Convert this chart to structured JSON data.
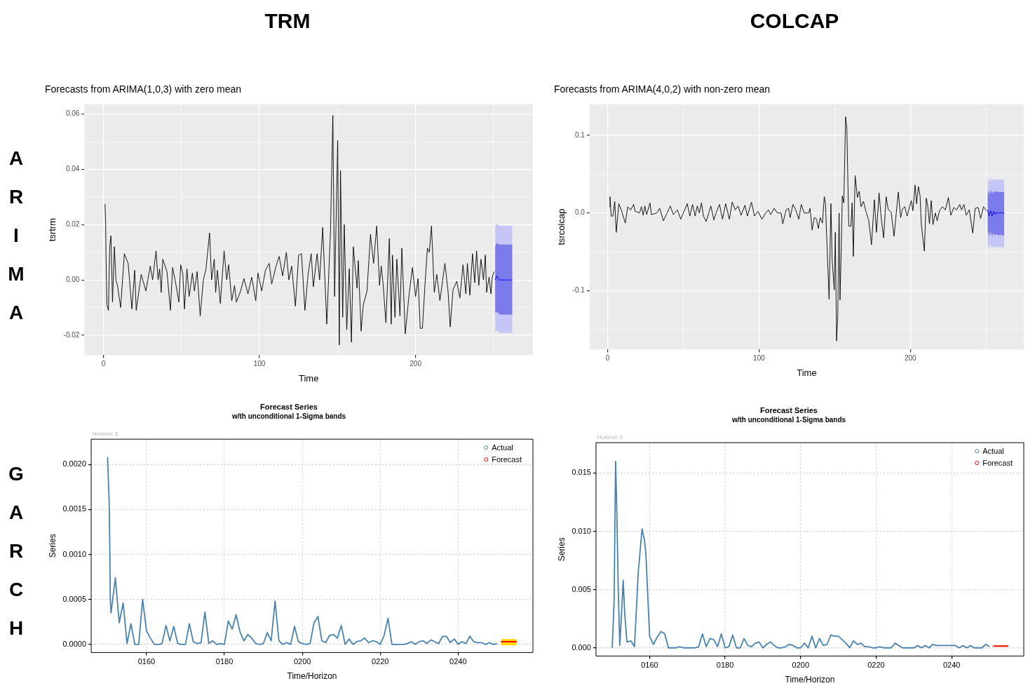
{
  "chart_data": [
    {
      "type": "line",
      "title": "Forecasts from ARIMA(1,0,3) with zero mean",
      "xlabel": "Time",
      "ylabel": "tsrtrm",
      "grid": true,
      "legend": false,
      "xlim": [
        -12.2,
        275.2
      ],
      "ylim": [
        -0.0272,
        0.0635
      ],
      "xticks": [
        0,
        {
          "value": 50,
          "label": null
        },
        100,
        {
          "value": 150,
          "label": null
        },
        200,
        {
          "value": 250,
          "label": null
        }
      ],
      "yticks": [
        {
          "value": -0.02,
          "label": "-0.02"
        },
        {
          "value": -0.01,
          "label": null
        },
        {
          "value": 0,
          "label": "0.00"
        },
        {
          "value": 0.01,
          "label": null
        },
        {
          "value": 0.02,
          "label": "0.02"
        },
        {
          "value": 0.03,
          "label": null
        },
        {
          "value": 0.04,
          "label": "0.04"
        },
        {
          "value": 0.05,
          "label": null
        },
        {
          "value": 0.06,
          "label": "0.06"
        }
      ],
      "series": [
        {
          "color": "#000000",
          "x": [
            1,
            1.4,
            1.6,
            2.2,
            3.2,
            4,
            4.8,
            5.8,
            7,
            8,
            9,
            11,
            13.4,
            15.8,
            18.2,
            20,
            21,
            24.2,
            27.2,
            30,
            31.5,
            33.7,
            35,
            36,
            37,
            38,
            40.7,
            42.9,
            44.3,
            46.7,
            48.3,
            49.5,
            50.9,
            51.9,
            53.5,
            54.9,
            57,
            58.3,
            60,
            62,
            64,
            65.7,
            68,
            69.3,
            71,
            71.9,
            73,
            74.9,
            77.3,
            79,
            80.2,
            82.2,
            84,
            85.2,
            87.6,
            90,
            92.6,
            95,
            97.6,
            99,
            101.4,
            103.8,
            106.2,
            107.8,
            110.6,
            112.6,
            114.8,
            117.2,
            118.8,
            120.6,
            123,
            125.1,
            126.9,
            129.1,
            131.1,
            133.1,
            134.5,
            136.9,
            138.5,
            140.5,
            143.1,
            145.5,
            147,
            148.1,
            150.1,
            151.1,
            151.9,
            153.3,
            154.3,
            155.9,
            157.5,
            158.9,
            160.1,
            162.5,
            163.3,
            165.1,
            166.5,
            168.9,
            171.1,
            173.1,
            175.1,
            176.9,
            178,
            179.2,
            181,
            183.2,
            184.4,
            185.2,
            186.8,
            188,
            190,
            191.2,
            193.4,
            195.8,
            198,
            200,
            201.6,
            203,
            204.4,
            206,
            207.6,
            208.8,
            210.2,
            212,
            213.6,
            215.6,
            218.8,
            220.8,
            222.2,
            224,
            226.4,
            228.4,
            230.4,
            232.2,
            233.2,
            234.8,
            236.5,
            237.9,
            239.1,
            240.5,
            241.9,
            243.5,
            244.7,
            245.5,
            247.1,
            248.3,
            249.1,
            250.3
          ],
          "values": [
            0.0275,
            0.021,
            0.01,
            -0.009,
            -0.011,
            0.012,
            0.016,
            -0.008,
            0.012,
            0,
            -0.002,
            -0.01,
            0.0095,
            0.006,
            -0.0105,
            0.0035,
            -0.011,
            0.002,
            -0.004,
            0.005,
            0,
            0.0105,
            0,
            0.004,
            -0.0045,
            0.0075,
            0.003,
            -0.011,
            0.0045,
            -0.0025,
            -0.008,
            0.0055,
            0.002,
            -0.0105,
            0.004,
            -0.006,
            0.0025,
            -0.004,
            0.003,
            -0.013,
            0,
            0.004,
            0.017,
            0,
            0.0075,
            -0.0045,
            0.0035,
            -0.0085,
            0.0105,
            0,
            0.0055,
            -0.0075,
            -0.002,
            -0.008,
            -0.0045,
            0.0005,
            -0.005,
            0.001,
            -0.0075,
            0.0025,
            -0.004,
            0.0035,
            0.006,
            -0.0015,
            0.005,
            0.0085,
            0.0015,
            0.01,
            0,
            0.005,
            -0.0095,
            0.009,
            0.0095,
            -0.011,
            0.002,
            0.0095,
            -0.0025,
            0.0095,
            0,
            0.019,
            -0.016,
            0.018,
            0.0595,
            -0.006,
            0.0505,
            -0.0235,
            0.0395,
            -0.0135,
            0.02,
            -0.018,
            0.004,
            -0.0225,
            0.012,
            -0.003,
            0.007,
            -0.0185,
            -0.009,
            -0.004,
            0.0165,
            0.006,
            0.0195,
            -0.002,
            0.005,
            -0.0015,
            -0.0155,
            0.015,
            -0.016,
            0.009,
            -0.0135,
            0.0075,
            -0.013,
            0.0115,
            -0.0195,
            -0.0055,
            0.0045,
            -0.006,
            0.0005,
            -0.0175,
            -0.0175,
            -0.002,
            0.0115,
            0.01,
            0.0195,
            -0.0045,
            0.002,
            -0.0075,
            0.006,
            -0.004,
            -0.017,
            -0.0035,
            -0.0005,
            -0.0065,
            0.0055,
            -0.005,
            0.006,
            -0.0055,
            0.0095,
            -0.001,
            0.0105,
            -0.002,
            0.0075,
            0,
            0.009,
            -0.0045,
            0.001,
            -0.005,
            0.001,
            0.003
          ]
        },
        {
          "color": "#c5c5f7",
          "x": [
            251,
            252,
            253,
            254,
            255,
            256,
            257,
            258,
            259,
            260,
            261,
            262
          ],
          "values": [
            null,
            null,
            null,
            null,
            null,
            null,
            null,
            null,
            null,
            null,
            null,
            null
          ],
          "lower": [
            -0.019,
            -0.018,
            -0.0188,
            -0.019,
            -0.0192,
            -0.0192,
            -0.0192,
            -0.0192,
            -0.0192,
            -0.0192,
            -0.0192,
            -0.0192
          ],
          "upper": [
            0.019,
            0.0205,
            0.0198,
            0.0196,
            0.0196,
            0.0196,
            0.0196,
            0.0196,
            0.0196,
            0.0196,
            0.0196,
            0.0196
          ]
        },
        {
          "color": "#7b7bec",
          "x": [
            251,
            252,
            253,
            254,
            255,
            256,
            257,
            258,
            259,
            260,
            261,
            262
          ],
          "values": [
            null,
            null,
            null,
            null,
            null,
            null,
            null,
            null,
            null,
            null,
            null,
            null
          ],
          "lower": [
            -0.012,
            -0.0115,
            -0.012,
            -0.0125,
            -0.0125,
            -0.0125,
            -0.0125,
            -0.0125,
            -0.0125,
            -0.0125,
            -0.0125,
            -0.0125
          ],
          "upper": [
            0.012,
            0.0135,
            0.013,
            0.0128,
            0.0128,
            0.0128,
            0.0128,
            0.0128,
            0.0128,
            0.0128,
            0.0128,
            0.0128
          ]
        },
        {
          "color": "#0000ff",
          "x": [
            251,
            252,
            253,
            254,
            255,
            256,
            257,
            258,
            259,
            260,
            261,
            262
          ],
          "values": [
            0,
            0.0015,
            0.0003,
            0,
            0,
            0,
            0,
            0,
            0,
            0,
            0,
            0
          ]
        }
      ]
    },
    {
      "type": "line",
      "title": "Forecasts from ARIMA(4,0,2) with non-zero mean",
      "xlabel": "Time",
      "ylabel": "tsrcolcap",
      "grid": true,
      "legend": false,
      "xlim": [
        -11.9,
        274.9
      ],
      "ylim": [
        -0.176,
        0.14
      ],
      "xticks": [
        0,
        {
          "value": 50,
          "label": null
        },
        100,
        {
          "value": 150,
          "label": null
        },
        200,
        {
          "value": 250,
          "label": null
        }
      ],
      "yticks": [
        {
          "value": -0.15,
          "label": null
        },
        {
          "value": -0.1,
          "label": "-0.1"
        },
        {
          "value": -0.05,
          "label": null
        },
        {
          "value": 0,
          "label": "0.0"
        },
        {
          "value": 0.05,
          "label": null
        },
        {
          "value": 0.1,
          "label": "0.1"
        }
      ],
      "series": [
        {
          "color": "#000000",
          "x": [
            1.2,
            1.6,
            2.3,
            3.5,
            4.7,
            5.7,
            7.4,
            9,
            11.7,
            13.3,
            15.2,
            17.2,
            18.2,
            21.1,
            22.3,
            23.5,
            24.6,
            25.8,
            28,
            28.9,
            32.5,
            34.4,
            36.8,
            39.3,
            41.4,
            43.4,
            46.1,
            48.3,
            52.6,
            54.3,
            56.1,
            57.8,
            59.2,
            60.6,
            62,
            63.3,
            65.1,
            67.1,
            68.2,
            70.2,
            71.6,
            73.9,
            75.9,
            78,
            80.4,
            82.3,
            84.3,
            86.2,
            88.2,
            90.7,
            92.3,
            95,
            97,
            99.3,
            102,
            104.4,
            106.2,
            107.7,
            110.1,
            112.1,
            114.6,
            115.7,
            117.9,
            119.5,
            120.6,
            122.4,
            124.3,
            126.3,
            127.9,
            129.8,
            132.8,
            133.7,
            135.1,
            136.5,
            138,
            139.2,
            140.4,
            141.9,
            143.1,
            143.9,
            144.7,
            146.3,
            147.5,
            148.3,
            149.7,
            150.4,
            151.2,
            152,
            152.9,
            153.5,
            154.3,
            155,
            156,
            157.2,
            158,
            159.3,
            160.7,
            161.5,
            162.3,
            163.5,
            165,
            166.2,
            167.4,
            169,
            170.5,
            172.5,
            174.3,
            176.2,
            177.6,
            179.3,
            180.7,
            182.3,
            184,
            185.3,
            187.3,
            189.2,
            192,
            193.6,
            194.7,
            196.3,
            197.8,
            200.6,
            201.7,
            203.1,
            204.1,
            205.3,
            206.4,
            207.2,
            209.2,
            210.5,
            211.4,
            212.6,
            213.8,
            214.9,
            216.5,
            217.7,
            219.2,
            221.2,
            223.1,
            225.1,
            226.7,
            228.6,
            230.6,
            232.6,
            233.8,
            235.4,
            236.9,
            238.9,
            241.2,
            242.8,
            244.8,
            246.4,
            248.3,
            250.2
          ],
          "values": [
            0.008,
            0.021,
            -0.004,
            -0.004,
            0.015,
            -0.025,
            0.012,
            0.004,
            -0.013,
            0.008,
            0.004,
            0.011,
            0.002,
            0,
            0.008,
            -0.003,
            0.009,
            -0.002,
            0.013,
            -0.002,
            0,
            0.006,
            -0.01,
            0,
            0.009,
            -0.002,
            0.004,
            -0.008,
            0.012,
            -0.004,
            0.011,
            -0.004,
            0.009,
            0,
            0.013,
            -0.004,
            -0.011,
            0.002,
            0.009,
            -0.009,
            0,
            0.011,
            -0.008,
            0.012,
            -0.008,
            0.014,
            0.004,
            0.009,
            -0.003,
            0.01,
            -0.004,
            0.014,
            -0.004,
            0.002,
            -0.008,
            0,
            0.004,
            -0.002,
            0.006,
            0,
            0,
            -0.014,
            0.004,
            0.006,
            -0.006,
            0.011,
            0.004,
            -0.008,
            0.011,
            0,
            0,
            0.006,
            -0.022,
            -0.006,
            -0.008,
            -0.02,
            -0.006,
            -0.013,
            0.021,
            0.012,
            -0.03,
            -0.111,
            0.012,
            -0.06,
            -0.099,
            -0.025,
            -0.165,
            -0.135,
            0,
            -0.112,
            -0.05,
            0.022,
            0.013,
            0.124,
            0.11,
            -0.017,
            -0.017,
            0.013,
            -0.056,
            0.048,
            0.02,
            0.028,
            0.008,
            0.015,
            0.003,
            -0.01,
            -0.041,
            0.017,
            -0.025,
            0.026,
            -0.006,
            -0.032,
            0.021,
            0.005,
            0.001,
            -0.03,
            0.027,
            -0.006,
            0.005,
            0.008,
            -0.004,
            0.016,
            0.003,
            0.036,
            0.012,
            0.034,
            0.022,
            -0.014,
            -0.049,
            0.019,
            0.01,
            -0.014,
            0.016,
            -0.015,
            0,
            -0.01,
            0.003,
            0.008,
            0.004,
            0.02,
            -0.003,
            0.007,
            0.004,
            0.011,
            0.004,
            0.011,
            -0.003,
            0.004,
            -0.026,
            0.006,
            0.007,
            -0.007,
            0.008,
            0.003
          ]
        },
        {
          "color": "#c5c5f7",
          "x": [
            251,
            252,
            253,
            254,
            255,
            256,
            257,
            258,
            259,
            260,
            261,
            262
          ],
          "values": [
            null,
            null,
            null,
            null,
            null,
            null,
            null,
            null,
            null,
            null,
            null,
            null
          ],
          "lower": [
            -0.038,
            -0.046,
            -0.04,
            -0.046,
            -0.042,
            -0.045,
            -0.043,
            -0.045,
            -0.044,
            -0.044,
            -0.045,
            -0.045
          ],
          "upper": [
            0.046,
            0.04,
            0.046,
            0.041,
            0.044,
            0.042,
            0.044,
            0.043,
            0.043,
            0.043,
            0.043,
            0.043
          ]
        },
        {
          "color": "#7b7bec",
          "x": [
            251,
            252,
            253,
            254,
            255,
            256,
            257,
            258,
            259,
            260,
            261,
            262
          ],
          "values": [
            null,
            null,
            null,
            null,
            null,
            null,
            null,
            null,
            null,
            null,
            null,
            null
          ],
          "lower": [
            -0.022,
            -0.03,
            -0.024,
            -0.03,
            -0.026,
            -0.029,
            -0.027,
            -0.029,
            -0.028,
            -0.028,
            -0.029,
            -0.029
          ],
          "upper": [
            0.03,
            0.024,
            0.03,
            0.025,
            0.028,
            0.027,
            0.028,
            0.027,
            0.027,
            0.027,
            0.027,
            0.027
          ]
        },
        {
          "color": "#0000ff",
          "x": [
            251,
            252,
            253,
            254,
            255,
            256,
            257,
            258,
            259,
            260,
            261,
            262
          ],
          "values": [
            0.004,
            -0.004,
            0.003,
            -0.004,
            0.002,
            -0.002,
            0.001,
            -0.001,
            0.001,
            0,
            0,
            0
          ]
        }
      ]
    },
    {
      "type": "line",
      "title": "Forecast Series",
      "subtitle": "w/th unconditional 1-Sigma bands",
      "xlabel": "Time/Horizon",
      "ylabel": "Series",
      "grid": true,
      "legend": "top right",
      "annotations": [
        "Horizon: 5"
      ],
      "xlim": [
        145.8,
        259.2
      ],
      "ylim": [
        -9e-05,
        0.00228
      ],
      "xticks": [
        {
          "value": 160,
          "label": "0160"
        },
        {
          "value": 180,
          "label": "0180"
        },
        {
          "value": 200,
          "label": "0200"
        },
        {
          "value": 220,
          "label": "0220"
        },
        {
          "value": 240,
          "label": "0240"
        }
      ],
      "yticks": [
        {
          "value": 0,
          "label": "0.0000"
        },
        {
          "value": 0.0005,
          "label": "0.0005"
        },
        {
          "value": 0.001,
          "label": "0.0010"
        },
        {
          "value": 0.0015,
          "label": "0.0015"
        },
        {
          "value": 0.002,
          "label": "0.0020"
        }
      ],
      "series": [
        {
          "name": "Actual",
          "color": "#4682b4",
          "x": [
            150,
            150.4,
            150.6,
            150.7,
            150.9,
            152,
            153,
            154,
            155,
            156,
            157,
            158,
            159,
            160,
            161,
            162,
            163,
            164,
            165,
            166,
            167,
            168,
            169,
            170,
            171,
            172,
            173,
            174,
            175,
            176,
            177,
            178,
            179,
            180,
            181,
            182,
            183,
            184,
            185,
            186,
            187,
            188,
            189,
            190,
            191,
            192,
            193,
            194,
            195,
            196,
            197,
            198,
            199,
            200,
            201,
            202,
            203,
            204,
            205,
            206,
            207,
            208,
            209,
            210,
            211,
            212,
            213,
            214,
            215,
            216,
            217,
            218,
            219,
            220,
            221,
            222,
            223,
            224,
            225,
            226,
            227,
            228,
            229,
            230,
            231,
            232,
            233,
            234,
            235,
            236,
            237,
            238,
            239,
            240,
            241,
            242,
            243,
            244,
            245,
            246,
            247,
            248,
            249,
            250
          ],
          "values": [
            0.00208,
            0.0016,
            0.001,
            0.0005,
            0.00035,
            0.00074,
            0.00024,
            0.00046,
            1e-05,
            0.00023,
            0,
            0,
            0.0005,
            0.00015,
            7e-05,
            0,
            0,
            1e-05,
            0.00021,
            4e-05,
            0.0002,
            1e-05,
            0,
            0,
            0.00023,
            3e-05,
            1e-05,
            2e-05,
            0.00036,
            1e-05,
            4e-05,
            0,
            1e-05,
            0,
            0.00026,
            0.00017,
            0.00033,
            0.00014,
            4e-05,
            0.00011,
            7e-05,
            1e-05,
            0,
            1e-05,
            0.00013,
            4e-05,
            0.00048,
            4e-05,
            0,
            2e-05,
            0,
            0.0002,
            3e-05,
            1e-05,
            0,
            1e-05,
            0.00024,
            0.00031,
            4e-05,
            2e-05,
            0.0001,
            0.00011,
            7e-05,
            0.00021,
            0,
            6e-05,
            0,
            3e-05,
            4e-05,
            7e-05,
            2e-05,
            4e-05,
            3e-05,
            0,
            0.0001,
            0.00029,
            0,
            0,
            0,
            0,
            1e-05,
            3e-05,
            0,
            3e-05,
            4e-05,
            1e-05,
            5e-05,
            3e-05,
            1e-05,
            9e-05,
            9e-05,
            2e-05,
            6e-05,
            0,
            3e-05,
            1e-05,
            9e-05,
            3e-05,
            2e-05,
            2e-05,
            0,
            2e-05,
            0,
            1e-05
          ]
        },
        {
          "color": "#ffd700",
          "x": [
            251,
            252,
            253,
            254,
            255
          ],
          "values": [
            null,
            null,
            null,
            null,
            null
          ],
          "lower": [
            -1e-05,
            -1e-05,
            -1e-05,
            -1e-05,
            -1e-05
          ],
          "upper": [
            6e-05,
            6e-05,
            6e-05,
            6e-05,
            6e-05
          ]
        },
        {
          "name": "Forecast",
          "color": "#ff0000",
          "x": [
            251,
            252,
            253,
            254,
            255
          ],
          "values": [
            3e-05,
            3e-05,
            3e-05,
            3e-05,
            3e-05
          ]
        }
      ]
    },
    {
      "type": "line",
      "title": "Forecast Series",
      "subtitle": "w/th unconditional 1-Sigma bands",
      "xlabel": "Time/Horizon",
      "ylabel": "Series",
      "grid": true,
      "legend": "top right",
      "annotations": [
        "Horizon: 5"
      ],
      "xlim": [
        145.8,
        259.1
      ],
      "ylim": [
        -0.0007,
        0.0176
      ],
      "xticks": [
        {
          "value": 160,
          "label": "0160"
        },
        {
          "value": 180,
          "label": "0180"
        },
        {
          "value": 200,
          "label": "0200"
        },
        {
          "value": 220,
          "label": "0220"
        },
        {
          "value": 240,
          "label": "0240"
        }
      ],
      "yticks": [
        {
          "value": 0,
          "label": "0.000"
        },
        {
          "value": 0.005,
          "label": "0.005"
        },
        {
          "value": 0.01,
          "label": "0.010"
        },
        {
          "value": 0.015,
          "label": "0.015"
        }
      ],
      "series": [
        {
          "name": "Actual",
          "color": "#4682b4",
          "x": [
            150.1,
            150.6,
            151,
            151.3,
            151.7,
            152.1,
            152.5,
            153,
            153.4,
            154,
            155,
            156,
            157,
            158,
            158.6,
            159,
            160,
            161,
            162,
            163,
            164,
            165,
            166,
            167,
            168,
            169,
            170,
            171,
            172,
            173,
            174,
            175,
            176,
            177,
            178,
            179,
            180,
            181,
            182,
            183,
            184,
            185,
            186,
            187,
            188,
            189,
            190,
            191,
            192,
            193,
            194,
            195,
            196,
            197,
            198,
            199,
            200,
            201,
            202,
            203,
            204,
            205,
            206,
            207,
            208,
            209,
            210,
            211,
            212,
            213,
            214,
            215,
            216,
            217,
            218,
            219,
            220,
            221,
            222,
            223,
            224,
            225,
            226,
            227,
            228,
            229,
            230,
            231,
            232,
            233,
            234,
            235,
            236,
            237,
            238,
            239,
            240,
            241,
            242,
            243,
            244,
            245,
            246,
            247,
            248,
            249,
            250
          ],
          "values": [
            0,
            0.004,
            0.016,
            0.012,
            0.005,
            0.0002,
            0.0025,
            0.0058,
            0.003,
            0.0005,
            0.0006,
            0.0001,
            0.0065,
            0.0102,
            0.0093,
            0.0082,
            0.001,
            0.0003,
            0.0009,
            0.0014,
            0.0012,
            0,
            0,
            0,
            0.0001,
            0,
            0,
            0,
            0,
            0.0001,
            0.0012,
            0.0001,
            0.0008,
            0.0007,
            0.0001,
            0.0012,
            0,
            0.0001,
            0.0011,
            0,
            0,
            0.0008,
            0.0002,
            0.0001,
            0.0004,
            0.0005,
            0,
            0.0003,
            0.0005,
            0.0002,
            0,
            0,
            0.0001,
            0.0003,
            0.0002,
            0,
            0,
            0.0004,
            0,
            0.001,
            0,
            0.0008,
            0.0002,
            0.0003,
            0.0011,
            0.001,
            0.001,
            0.0007,
            0.0004,
            0,
            0.0006,
            0.0003,
            0.0004,
            0.0001,
            0.0001,
            0,
            0,
            0.0001,
            0,
            0,
            0,
            0.0004,
            0.0002,
            0,
            0,
            0,
            0,
            0.0002,
            0,
            0.0002,
            0,
            0.0003,
            0.0002,
            0.0002,
            0.0002,
            0.0002,
            0.0002,
            0.0002,
            0,
            0.0002,
            0,
            0.0002,
            0,
            0,
            0,
            0.0003,
            0.0001
          ]
        },
        {
          "color": "#ffd700",
          "x": [
            251,
            252,
            253,
            254,
            255
          ],
          "values": [
            null,
            null,
            null,
            null,
            null
          ],
          "lower": [
            0.0001,
            0.0001,
            0.0001,
            0.0001,
            0.0001
          ],
          "upper": [
            0.0002,
            0.0002,
            0.0002,
            0.0002,
            0.0002
          ]
        },
        {
          "name": "Forecast",
          "color": "#ff0000",
          "x": [
            251,
            252,
            253,
            254,
            255
          ],
          "values": [
            0.00015,
            0.00015,
            0.00015,
            0.00015,
            0.00015
          ]
        }
      ]
    },
    {
      "type": "other",
      "annotations": [
        "TRM",
        "COLCAP",
        "ARIMA",
        "GARCH"
      ]
    }
  ]
}
